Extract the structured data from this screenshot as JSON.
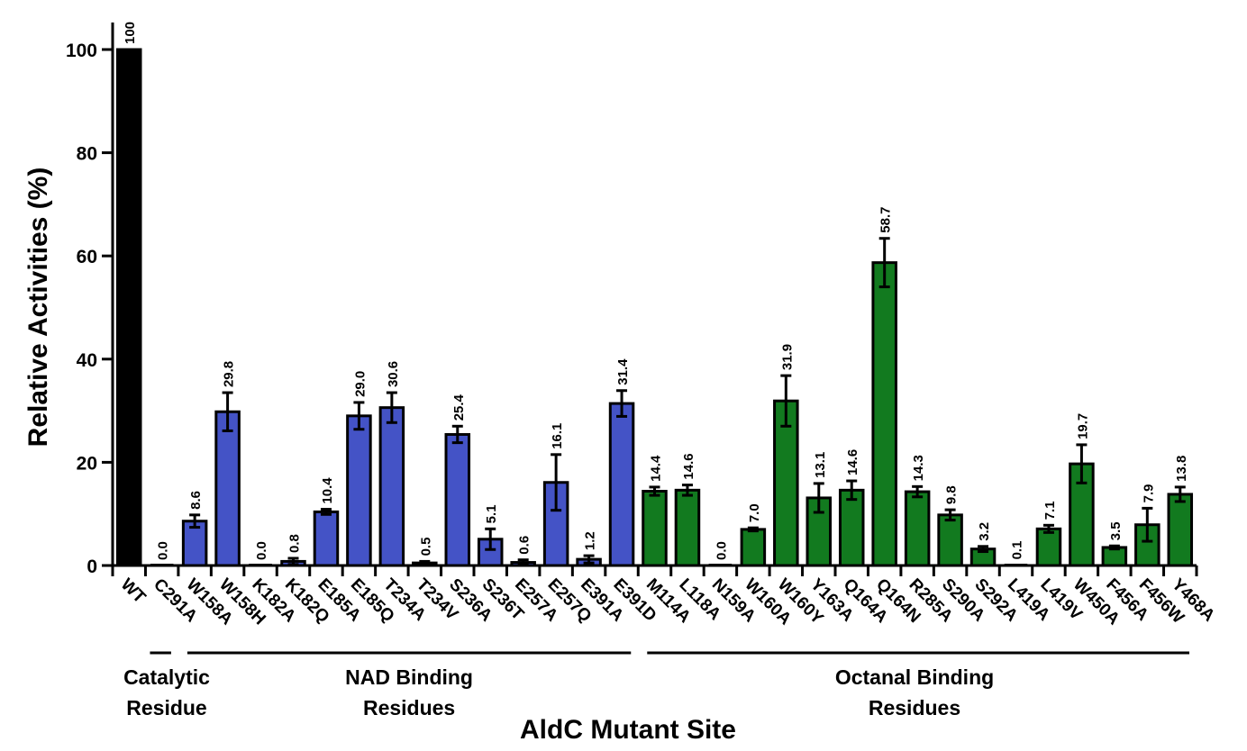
{
  "chart_data": {
    "type": "bar",
    "title": "",
    "xlabel": "AldC Mutant Site",
    "ylabel": "Relative Activities (%)",
    "ylim": [
      0,
      105
    ],
    "yticks": [
      0,
      20,
      40,
      60,
      80,
      100
    ],
    "ytick_labels": [
      "0",
      "20",
      "40",
      "60",
      "80",
      "100"
    ],
    "grid": false,
    "legend": null,
    "categories": [
      "WT",
      "C291A",
      "W158A",
      "W158H",
      "K182A",
      "K182Q",
      "E185A",
      "E185Q",
      "T234A",
      "T234V",
      "S236A",
      "S236T",
      "E257A",
      "E257Q",
      "E391A",
      "E391D",
      "M114A",
      "L118A",
      "N159A",
      "W160A",
      "W160Y",
      "Y163A",
      "Q164A",
      "Q164N",
      "R285A",
      "S290A",
      "S292A",
      "L419A",
      "L419V",
      "W450A",
      "F456A",
      "F456W",
      "Y468A"
    ],
    "values": [
      100,
      0.0,
      8.6,
      29.8,
      0.0,
      0.8,
      10.4,
      29.0,
      30.6,
      0.5,
      25.4,
      5.1,
      0.6,
      16.1,
      1.2,
      31.4,
      14.4,
      14.6,
      0.0,
      7.0,
      31.9,
      13.1,
      14.6,
      58.7,
      14.3,
      9.8,
      3.2,
      0.1,
      7.1,
      19.7,
      3.5,
      7.9,
      13.8
    ],
    "value_labels": [
      "100",
      "0.0",
      "8.6",
      "29.8",
      "0.0",
      "0.8",
      "10.4",
      "29.0",
      "30.6",
      "0.5",
      "25.4",
      "5.1",
      "0.6",
      "16.1",
      "1.2",
      "31.4",
      "14.4",
      "14.6",
      "0.0",
      "7.0",
      "31.9",
      "13.1",
      "14.6",
      "58.7",
      "14.3",
      "9.8",
      "3.2",
      "0.1",
      "7.1",
      "19.7",
      "3.5",
      "7.9",
      "13.8"
    ],
    "errors": [
      0,
      0,
      1.2,
      3.7,
      0,
      0.6,
      0.5,
      2.6,
      2.9,
      0.3,
      1.6,
      2.0,
      0.5,
      5.4,
      0.7,
      2.5,
      0.8,
      1.0,
      0,
      0.3,
      4.9,
      2.8,
      1.8,
      4.7,
      1.0,
      1.0,
      0.5,
      0,
      0.7,
      3.7,
      0.3,
      3.2,
      1.4
    ],
    "groups": [
      {
        "name": "control",
        "label_lines": [],
        "color": "#000000",
        "start": 0,
        "end": 0
      },
      {
        "name": "catalytic",
        "label_lines": [
          "Catalytic",
          "Residue"
        ],
        "color": "#4453c6",
        "start": 1,
        "end": 1
      },
      {
        "name": "nad-binding",
        "label_lines": [
          "NAD Binding",
          "Residues"
        ],
        "color": "#4453c6",
        "start": 2,
        "end": 15
      },
      {
        "name": "octanal-binding",
        "label_lines": [
          "Octanal Binding",
          "Residues"
        ],
        "color": "#127a1f",
        "start": 16,
        "end": 32
      }
    ]
  }
}
